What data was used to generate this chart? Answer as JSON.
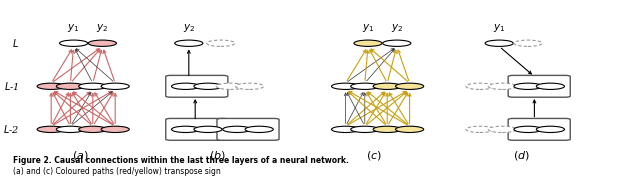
{
  "fig_width": 6.4,
  "fig_height": 1.84,
  "dpi": 100,
  "background": "#ffffff",
  "pink": "#f2b8b8",
  "pink_edge": "#cc6666",
  "yellow": "#f5e49a",
  "yellow_edge": "#c8a010",
  "node_r": 0.022,
  "dashed_color": "#999999",
  "caption_bold": "Figure 2. Causal connections within the last three layers of a neural network.",
  "caption_normal": " (a) and (c) Coloured paths (red/yellow) transpose sign"
}
